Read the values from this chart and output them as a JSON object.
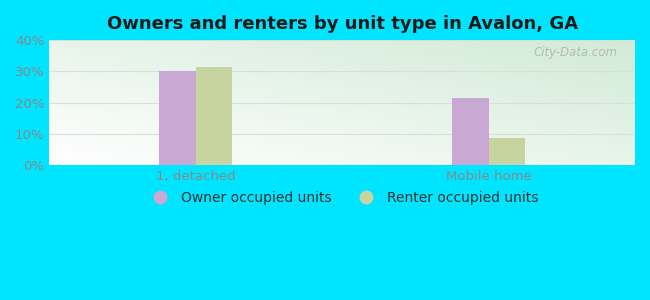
{
  "title": "Owners and renters by unit type in Avalon, GA",
  "categories": [
    "1, detached",
    "Mobile home"
  ],
  "owner_values": [
    30,
    21.5
  ],
  "renter_values": [
    31.5,
    8.5
  ],
  "owner_color": "#c9a8d4",
  "renter_color": "#c8d4a0",
  "outer_background": "#00e5ff",
  "ylim": [
    0,
    40
  ],
  "yticks": [
    0,
    10,
    20,
    30,
    40
  ],
  "ytick_labels": [
    "0%",
    "10%",
    "20%",
    "30%",
    "40%"
  ],
  "bar_width": 0.25,
  "legend_owner": "Owner occupied units",
  "legend_renter": "Renter occupied units",
  "watermark": "City-Data.com",
  "title_fontsize": 13,
  "tick_fontsize": 9.5,
  "legend_fontsize": 10,
  "tick_color": "#888888",
  "grid_color": "#dddddd"
}
